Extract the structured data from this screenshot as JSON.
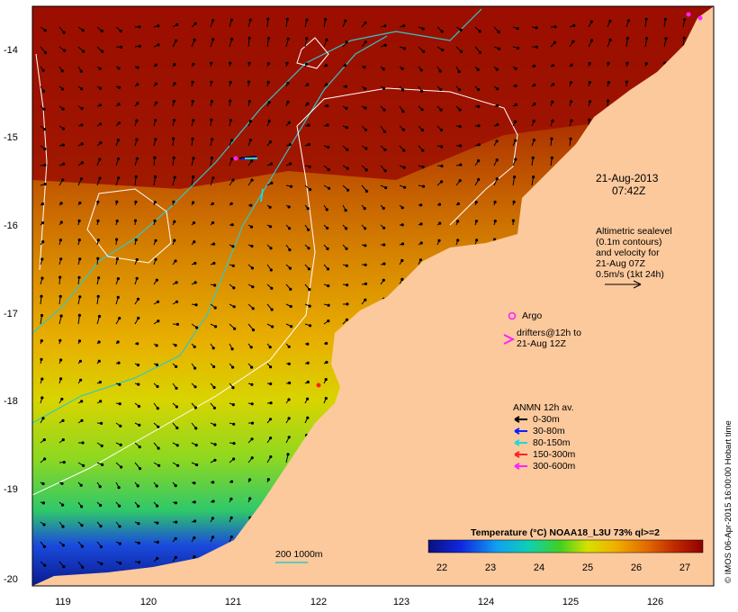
{
  "map": {
    "lon_ticks": [
      "119",
      "120",
      "121",
      "122",
      "123",
      "124",
      "125",
      "126"
    ],
    "lat_ticks": [
      "-14",
      "-15",
      "-16",
      "-17",
      "-18",
      "-19",
      "-20"
    ],
    "datetime": {
      "date": "21-Aug-2013",
      "time": "07:42Z"
    },
    "altimetry_note": [
      "Altimetric sealevel",
      "(0.1m contours)",
      "and velocity for",
      "21-Aug 07Z",
      "0.5m/s (1kt 24h)"
    ],
    "argo_label": "Argo",
    "drifters_label": [
      "drifters@12h to",
      "21-Aug 12Z"
    ],
    "mooring_legend": {
      "title": "ANMN 12h av.",
      "items": [
        {
          "label": "0-30m",
          "color": "#000000"
        },
        {
          "label": "30-80m",
          "color": "#1020ff"
        },
        {
          "label": "80-150m",
          "color": "#20d8d8"
        },
        {
          "label": "150-300m",
          "color": "#ff2020"
        },
        {
          "label": "300-600m",
          "color": "#ff20ff"
        }
      ]
    },
    "isobath_label": "200  1000m",
    "isobath_color": "#30c8c8",
    "land_color": "#fcc99c",
    "colorbar": {
      "title": "Temperature (°C) NOAA18_L3U 73% ql>=2",
      "labels": [
        "22",
        "23",
        "24",
        "25",
        "26",
        "27"
      ]
    },
    "credit": "© IMOS 06-Apr-2015 16:00:00 Hobart time"
  }
}
